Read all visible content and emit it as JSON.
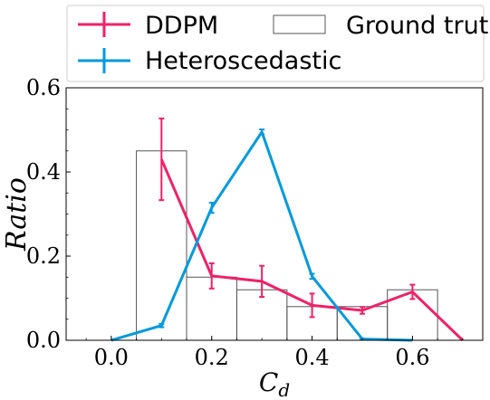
{
  "chart_data": {
    "type": "bar+line",
    "title": "",
    "xlabel": "C_d",
    "ylabel": "Ratio",
    "xlim": [
      -0.09,
      0.74
    ],
    "ylim": [
      0.0,
      0.6
    ],
    "xticks": [
      "0.0",
      "0.2",
      "0.4",
      "0.6"
    ],
    "xtick_values": [
      0.0,
      0.2,
      0.4,
      0.6
    ],
    "yticks": [
      "0.0",
      "0.2",
      "0.4",
      "0.6"
    ],
    "ytick_values": [
      0.0,
      0.2,
      0.4,
      0.6
    ],
    "grid": false,
    "legend_placement": "top, above plot",
    "histogram": {
      "name": "Ground truth",
      "bin_width": 0.1,
      "bin_centers": [
        0.1,
        0.2,
        0.3,
        0.4,
        0.5,
        0.6
      ],
      "values": [
        0.45,
        0.15,
        0.12,
        0.08,
        0.08,
        0.12
      ],
      "color": "#555555"
    },
    "series": [
      {
        "name": "DDPM",
        "color": "#ee2266",
        "x": [
          0.1,
          0.2,
          0.3,
          0.4,
          0.5,
          0.6,
          0.7
        ],
        "y": [
          0.43,
          0.153,
          0.14,
          0.083,
          0.071,
          0.115,
          0.0
        ],
        "yerr": [
          0.097,
          0.03,
          0.037,
          0.028,
          0.008,
          0.017,
          0.0
        ]
      },
      {
        "name": "Heteroscedastic",
        "color": "#0099dd",
        "x": [
          0.0,
          0.1,
          0.2,
          0.3,
          0.4,
          0.5,
          0.6
        ],
        "y": [
          0.0,
          0.035,
          0.315,
          0.495,
          0.152,
          0.003,
          0.0
        ],
        "yerr": [
          0.0,
          0.004,
          0.012,
          0.006,
          0.006,
          0.001,
          0.0
        ]
      }
    ]
  },
  "legend": {
    "ddpm": "DDPM",
    "hetero": "Heteroscedastic",
    "truth": "Ground truth"
  }
}
